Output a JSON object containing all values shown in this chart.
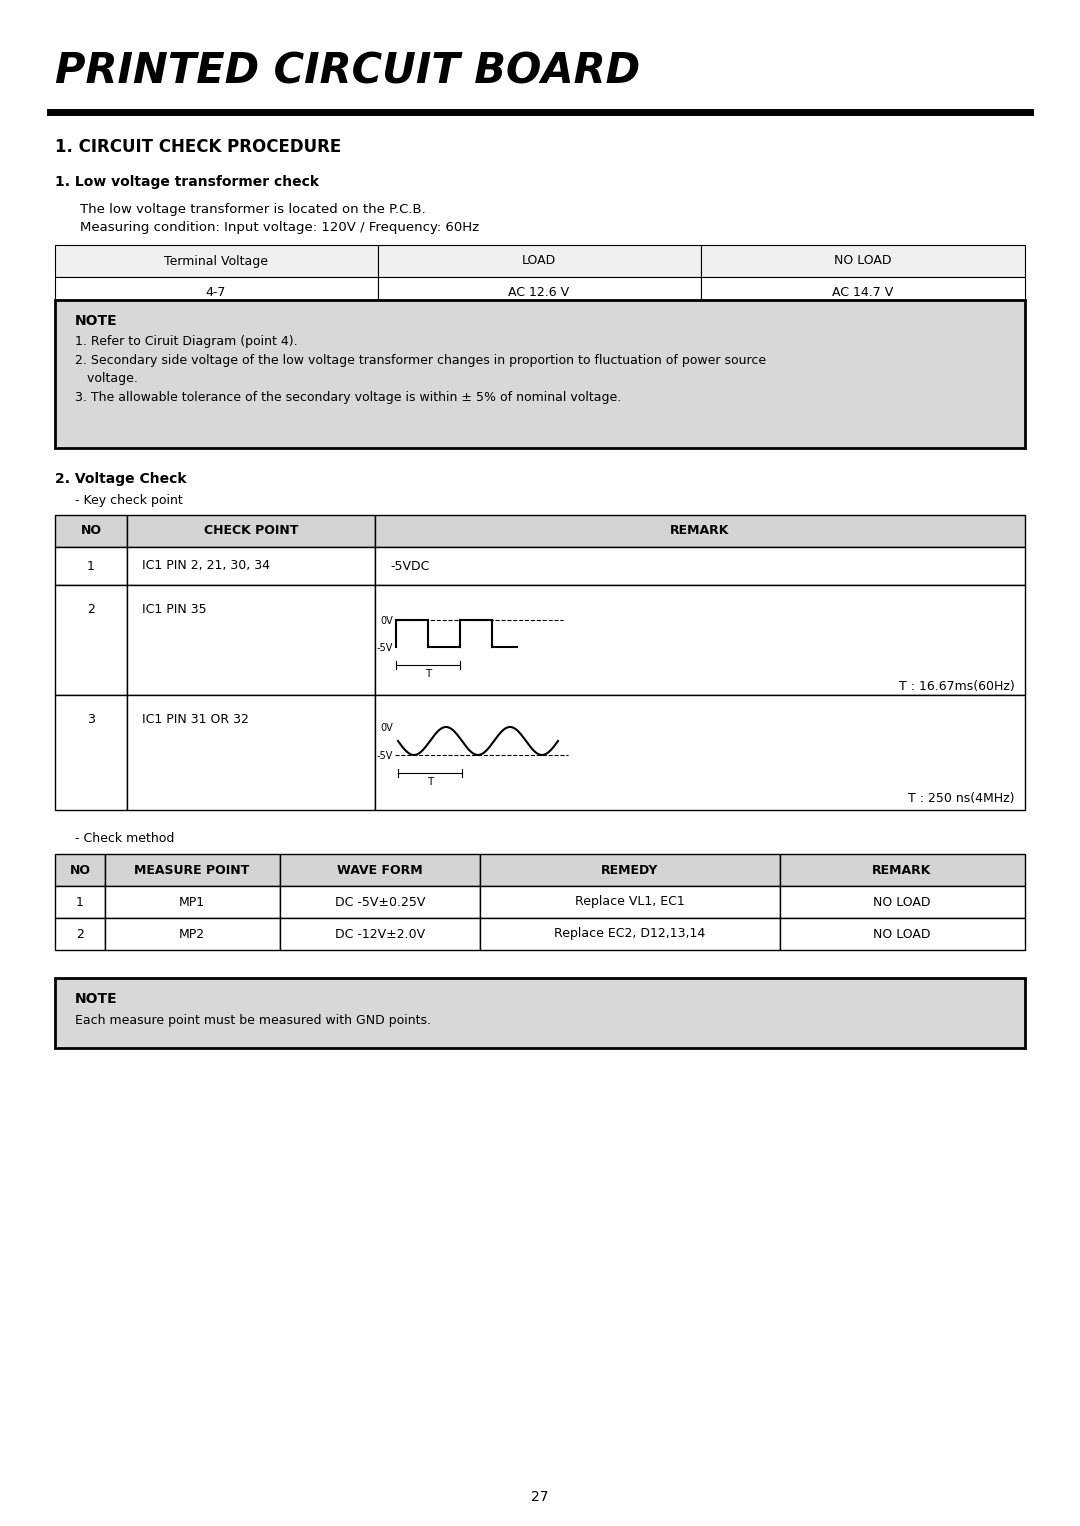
{
  "title": "PRINTED CIRCUIT BOARD",
  "section1_title": "1. CIRCUIT CHECK PROCEDURE",
  "subsection1_title": "1. Low voltage transformer check",
  "subsection1_desc_line1": "The low voltage transformer is located on the P.C.B.",
  "subsection1_desc_line2": "Measuring condition: Input voltage: 120V / Frequency: 60Hz",
  "table1_headers": [
    "Terminal Voltage",
    "LOAD",
    "NO LOAD"
  ],
  "table1_row": [
    "4-7",
    "AC 12.6 V",
    "AC 14.7 V"
  ],
  "note1_title": "NOTE",
  "note1_line1": "1. Refer to Ciruit Diagram (point 4).",
  "note1_line2": "2. Secondary side voltage of the low voltage transformer changes in proportion to fluctuation of power source",
  "note1_line2b": "   voltage.",
  "note1_line3": "3. The allowable tolerance of the secondary voltage is within ± 5% of nominal voltage.",
  "subsection2_title": "2. Voltage Check",
  "key_check_label": "- Key check point",
  "t2_header_no": "NO",
  "t2_header_cp": "CHECK POINT",
  "t2_header_rem": "REMARK",
  "row1_no": "1",
  "row1_cp": "IC1 PIN 2, 21, 30, 34",
  "row1_rem": "-5VDC",
  "row2_no": "2",
  "row2_cp": "IC1 PIN 35",
  "row2_timing": "T : 16.67ms(60Hz)",
  "row3_no": "3",
  "row3_cp": "IC1 PIN 31 OR 32",
  "row3_timing": "T : 250 ns(4MHz)",
  "check_method_label": "- Check method",
  "t3_h1": "NO",
  "t3_h2": "MEASURE POINT",
  "t3_h3": "WAVE FORM",
  "t3_h4": "REMEDY",
  "t3_h5": "REMARK",
  "t3_r1": [
    "1",
    "MP1",
    "DC -5V±0.25V",
    "Replace VL1, EC1",
    "NO LOAD"
  ],
  "t3_r2": [
    "2",
    "MP2",
    "DC -12V±2.0V",
    "Replace EC2, D12,13,14",
    "NO LOAD"
  ],
  "note2_title": "NOTE",
  "note2_text": "Each measure point must be measured with GND points.",
  "page_number": "27",
  "wave_label_0v": "0V",
  "wave_label_5v": "-5V",
  "bg_color": "#ffffff",
  "header_bg": "#d4d4d4",
  "note_bg": "#d8d8d8",
  "table1_hdr_bg": "#f0f0f0"
}
